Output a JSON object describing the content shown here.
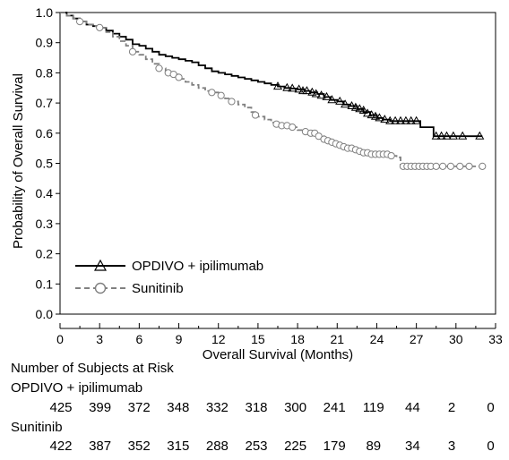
{
  "chart_data": {
    "type": "line",
    "xlabel": "Overall Survival (Months)",
    "ylabel": "Probability of Overall Survival",
    "xlim": [
      0,
      33
    ],
    "ylim": [
      0,
      1.0
    ],
    "x_ticks": [
      "0",
      "3",
      "6",
      "9",
      "12",
      "15",
      "18",
      "21",
      "24",
      "27",
      "30",
      "33"
    ],
    "y_ticks": [
      "0.0",
      "0.1",
      "0.2",
      "0.3",
      "0.4",
      "0.5",
      "0.6",
      "0.7",
      "0.8",
      "0.9",
      "1.0"
    ],
    "grid": false,
    "legend_position": "bottom-left",
    "series": [
      {
        "name": "OPDIVO + ipilimumab",
        "color": "#000000",
        "marker": "triangle",
        "line_style": "solid",
        "points": [
          [
            0,
            1.0
          ],
          [
            0.5,
            0.99
          ],
          [
            1,
            0.98
          ],
          [
            1.5,
            0.97
          ],
          [
            2,
            0.96
          ],
          [
            2.5,
            0.955
          ],
          [
            3,
            0.95
          ],
          [
            3.5,
            0.94
          ],
          [
            4,
            0.93
          ],
          [
            4.5,
            0.92
          ],
          [
            5,
            0.91
          ],
          [
            5.5,
            0.895
          ],
          [
            6,
            0.89
          ],
          [
            6.5,
            0.88
          ],
          [
            7,
            0.87
          ],
          [
            7.5,
            0.86
          ],
          [
            8,
            0.855
          ],
          [
            8.5,
            0.85
          ],
          [
            9,
            0.845
          ],
          [
            9.5,
            0.84
          ],
          [
            10,
            0.835
          ],
          [
            10.5,
            0.825
          ],
          [
            11,
            0.815
          ],
          [
            11.5,
            0.805
          ],
          [
            12,
            0.8
          ],
          [
            12.5,
            0.795
          ],
          [
            13,
            0.79
          ],
          [
            13.5,
            0.785
          ],
          [
            14,
            0.78
          ],
          [
            14.5,
            0.775
          ],
          [
            15,
            0.77
          ],
          [
            15.5,
            0.765
          ],
          [
            16,
            0.76
          ],
          [
            16.5,
            0.755
          ],
          [
            17,
            0.75
          ],
          [
            17.5,
            0.748
          ],
          [
            18,
            0.745
          ],
          [
            18.5,
            0.74
          ],
          [
            19,
            0.735
          ],
          [
            19.5,
            0.73
          ],
          [
            20,
            0.72
          ],
          [
            20.5,
            0.71
          ],
          [
            21,
            0.705
          ],
          [
            21.5,
            0.695
          ],
          [
            22,
            0.69
          ],
          [
            22.5,
            0.68
          ],
          [
            23,
            0.67
          ],
          [
            23.5,
            0.66
          ],
          [
            24,
            0.65
          ],
          [
            24.5,
            0.645
          ],
          [
            25,
            0.64
          ],
          [
            25.5,
            0.64
          ],
          [
            26,
            0.64
          ],
          [
            26.5,
            0.64
          ],
          [
            27,
            0.64
          ],
          [
            27.3,
            0.62
          ],
          [
            28,
            0.62
          ],
          [
            28.3,
            0.59
          ],
          [
            29,
            0.59
          ],
          [
            30,
            0.59
          ],
          [
            31,
            0.59
          ],
          [
            32,
            0.59
          ]
        ],
        "censored": [
          [
            16.5,
            0.755
          ],
          [
            17.2,
            0.75
          ],
          [
            17.6,
            0.748
          ],
          [
            18.1,
            0.745
          ],
          [
            18.4,
            0.74
          ],
          [
            18.7,
            0.74
          ],
          [
            19.1,
            0.735
          ],
          [
            19.4,
            0.73
          ],
          [
            19.8,
            0.725
          ],
          [
            20.2,
            0.72
          ],
          [
            20.6,
            0.71
          ],
          [
            21.2,
            0.705
          ],
          [
            21.6,
            0.695
          ],
          [
            22.1,
            0.69
          ],
          [
            22.4,
            0.685
          ],
          [
            22.7,
            0.68
          ],
          [
            23.0,
            0.675
          ],
          [
            23.3,
            0.665
          ],
          [
            23.6,
            0.66
          ],
          [
            23.9,
            0.655
          ],
          [
            24.2,
            0.65
          ],
          [
            24.6,
            0.645
          ],
          [
            25.0,
            0.64
          ],
          [
            25.4,
            0.64
          ],
          [
            25.8,
            0.64
          ],
          [
            26.2,
            0.64
          ],
          [
            26.6,
            0.64
          ],
          [
            27.0,
            0.64
          ],
          [
            28.5,
            0.59
          ],
          [
            28.9,
            0.59
          ],
          [
            29.3,
            0.59
          ],
          [
            29.8,
            0.59
          ],
          [
            30.5,
            0.59
          ],
          [
            31.8,
            0.59
          ]
        ]
      },
      {
        "name": "Sunitinib",
        "color": "#808080",
        "marker": "circle",
        "line_style": "dashed",
        "points": [
          [
            0,
            1.0
          ],
          [
            0.5,
            0.99
          ],
          [
            1,
            0.98
          ],
          [
            1.5,
            0.97
          ],
          [
            2,
            0.96
          ],
          [
            2.5,
            0.955
          ],
          [
            3,
            0.95
          ],
          [
            3.5,
            0.935
          ],
          [
            4,
            0.92
          ],
          [
            4.5,
            0.905
          ],
          [
            5,
            0.89
          ],
          [
            5.5,
            0.87
          ],
          [
            6,
            0.86
          ],
          [
            6.5,
            0.845
          ],
          [
            7,
            0.83
          ],
          [
            7.5,
            0.815
          ],
          [
            8,
            0.8
          ],
          [
            8.5,
            0.795
          ],
          [
            9,
            0.78
          ],
          [
            9.5,
            0.77
          ],
          [
            10,
            0.76
          ],
          [
            10.5,
            0.75
          ],
          [
            11,
            0.74
          ],
          [
            11.5,
            0.735
          ],
          [
            12,
            0.725
          ],
          [
            12.5,
            0.715
          ],
          [
            13,
            0.705
          ],
          [
            13.5,
            0.695
          ],
          [
            14,
            0.685
          ],
          [
            14.5,
            0.67
          ],
          [
            15,
            0.655
          ],
          [
            15.5,
            0.645
          ],
          [
            16,
            0.635
          ],
          [
            16.5,
            0.63
          ],
          [
            17,
            0.625
          ],
          [
            17.5,
            0.62
          ],
          [
            18,
            0.61
          ],
          [
            18.5,
            0.605
          ],
          [
            19,
            0.6
          ],
          [
            19.5,
            0.59
          ],
          [
            20,
            0.58
          ],
          [
            20.5,
            0.57
          ],
          [
            21,
            0.56
          ],
          [
            21.5,
            0.555
          ],
          [
            22,
            0.55
          ],
          [
            22.5,
            0.54
          ],
          [
            23,
            0.535
          ],
          [
            23.5,
            0.53
          ],
          [
            24,
            0.53
          ],
          [
            24.5,
            0.53
          ],
          [
            25,
            0.525
          ],
          [
            25.5,
            0.52
          ],
          [
            25.8,
            0.49
          ],
          [
            26,
            0.49
          ],
          [
            27,
            0.49
          ],
          [
            28,
            0.49
          ],
          [
            29,
            0.49
          ],
          [
            30,
            0.49
          ],
          [
            31,
            0.49
          ],
          [
            32,
            0.49
          ]
        ],
        "censored": [
          [
            1.5,
            0.97
          ],
          [
            3.0,
            0.95
          ],
          [
            5.5,
            0.87
          ],
          [
            7.5,
            0.815
          ],
          [
            8.2,
            0.8
          ],
          [
            8.6,
            0.795
          ],
          [
            9.0,
            0.785
          ],
          [
            11.5,
            0.735
          ],
          [
            12.2,
            0.725
          ],
          [
            13.0,
            0.705
          ],
          [
            14.8,
            0.66
          ],
          [
            16.4,
            0.63
          ],
          [
            16.8,
            0.625
          ],
          [
            17.2,
            0.625
          ],
          [
            17.6,
            0.62
          ],
          [
            18.6,
            0.605
          ],
          [
            19.0,
            0.6
          ],
          [
            19.3,
            0.6
          ],
          [
            19.6,
            0.59
          ],
          [
            20.0,
            0.58
          ],
          [
            20.3,
            0.575
          ],
          [
            20.6,
            0.57
          ],
          [
            20.9,
            0.565
          ],
          [
            21.2,
            0.56
          ],
          [
            21.5,
            0.555
          ],
          [
            21.8,
            0.55
          ],
          [
            22.1,
            0.55
          ],
          [
            22.4,
            0.545
          ],
          [
            22.7,
            0.54
          ],
          [
            23.0,
            0.535
          ],
          [
            23.3,
            0.535
          ],
          [
            23.6,
            0.53
          ],
          [
            23.9,
            0.53
          ],
          [
            24.2,
            0.53
          ],
          [
            24.5,
            0.53
          ],
          [
            24.8,
            0.53
          ],
          [
            25.1,
            0.525
          ],
          [
            26.0,
            0.49
          ],
          [
            26.3,
            0.49
          ],
          [
            26.6,
            0.49
          ],
          [
            26.9,
            0.49
          ],
          [
            27.2,
            0.49
          ],
          [
            27.5,
            0.49
          ],
          [
            27.8,
            0.49
          ],
          [
            28.1,
            0.49
          ],
          [
            28.5,
            0.49
          ],
          [
            29.0,
            0.49
          ],
          [
            29.6,
            0.49
          ],
          [
            30.3,
            0.49
          ],
          [
            31.0,
            0.49
          ],
          [
            32.0,
            0.49
          ]
        ]
      }
    ]
  },
  "at_risk": {
    "title": "Number of Subjects at Risk",
    "rows": [
      {
        "label": "OPDIVO + ipilimumab",
        "values": [
          "425",
          "399",
          "372",
          "348",
          "332",
          "318",
          "300",
          "241",
          "119",
          "44",
          "2",
          "0"
        ]
      },
      {
        "label": "Sunitinib",
        "values": [
          "422",
          "387",
          "352",
          "315",
          "288",
          "253",
          "225",
          "179",
          "89",
          "34",
          "3",
          "0"
        ]
      }
    ]
  }
}
